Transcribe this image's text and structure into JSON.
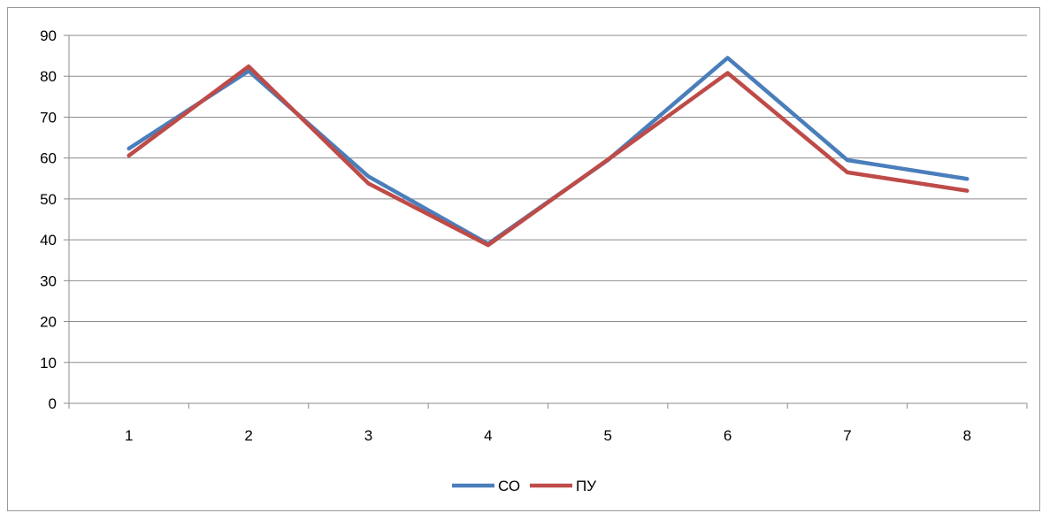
{
  "chart_data": {
    "type": "line",
    "categories": [
      "1",
      "2",
      "3",
      "4",
      "5",
      "6",
      "7",
      "8"
    ],
    "series": [
      {
        "name": "СО",
        "color": "#4a7ebb",
        "values": [
          62.3,
          81.3,
          55.5,
          39.0,
          59.5,
          84.5,
          59.5,
          54.9
        ]
      },
      {
        "name": "ПУ",
        "color": "#be4b48",
        "values": [
          60.6,
          82.4,
          53.8,
          38.7,
          59.6,
          80.8,
          56.5,
          52.0
        ]
      }
    ],
    "ylim": [
      0,
      90
    ],
    "yticks": [
      0,
      10,
      20,
      30,
      40,
      50,
      60,
      70,
      80,
      90
    ],
    "grid": true,
    "legend": "bottom",
    "title": "",
    "xlabel": "",
    "ylabel": ""
  }
}
